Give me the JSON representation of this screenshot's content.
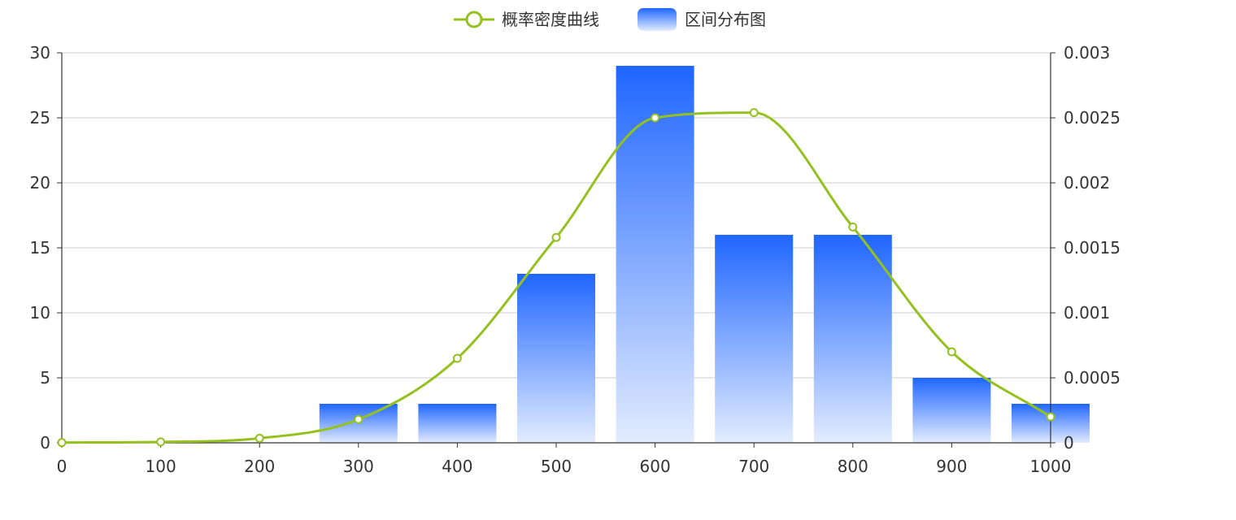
{
  "colors": {
    "line": "#95c11f",
    "bar_top": "#1f66ff",
    "bar_bottom": "#e3ecff",
    "grid": "#cccccc",
    "axis": "#333333",
    "text": "#333333"
  },
  "legend": {
    "items": [
      {
        "label": "概率密度曲线",
        "icon": "line-circle-icon"
      },
      {
        "label": "区间分布图",
        "icon": "gradient-rect-icon"
      }
    ]
  },
  "chart_data": {
    "type": "bar",
    "title": "",
    "xlabel": "",
    "ylabel": "",
    "grid": "horizontal",
    "legend_position": "top-center",
    "x_axis": {
      "range": [
        0,
        1000
      ],
      "ticks": [
        "0",
        "100",
        "200",
        "300",
        "400",
        "500",
        "600",
        "700",
        "800",
        "900",
        "1000"
      ]
    },
    "y_left": {
      "range": [
        0,
        30
      ],
      "ticks": [
        "0",
        "5",
        "10",
        "15",
        "20",
        "25",
        "30"
      ]
    },
    "y_right": {
      "range": [
        0,
        0.003
      ],
      "ticks": [
        "0",
        "0.0005",
        "0.001",
        "0.0015",
        "0.002",
        "0.0025",
        "0.003"
      ]
    },
    "series": [
      {
        "name": "区间分布图",
        "type": "bar",
        "axis": "left",
        "x": [
          300,
          400,
          500,
          600,
          700,
          800,
          900,
          1000
        ],
        "values": [
          3,
          3,
          13,
          29,
          16,
          16,
          5,
          3
        ]
      },
      {
        "name": "概率密度曲线",
        "type": "line",
        "axis": "right",
        "smooth": true,
        "x": [
          0,
          100,
          200,
          300,
          400,
          500,
          600,
          700,
          800,
          900,
          1000
        ],
        "values": [
          2e-06,
          7e-06,
          3.5e-05,
          0.00018,
          0.00065,
          0.00158,
          0.0025,
          0.00254,
          0.00166,
          0.0007,
          0.0002
        ]
      }
    ]
  }
}
